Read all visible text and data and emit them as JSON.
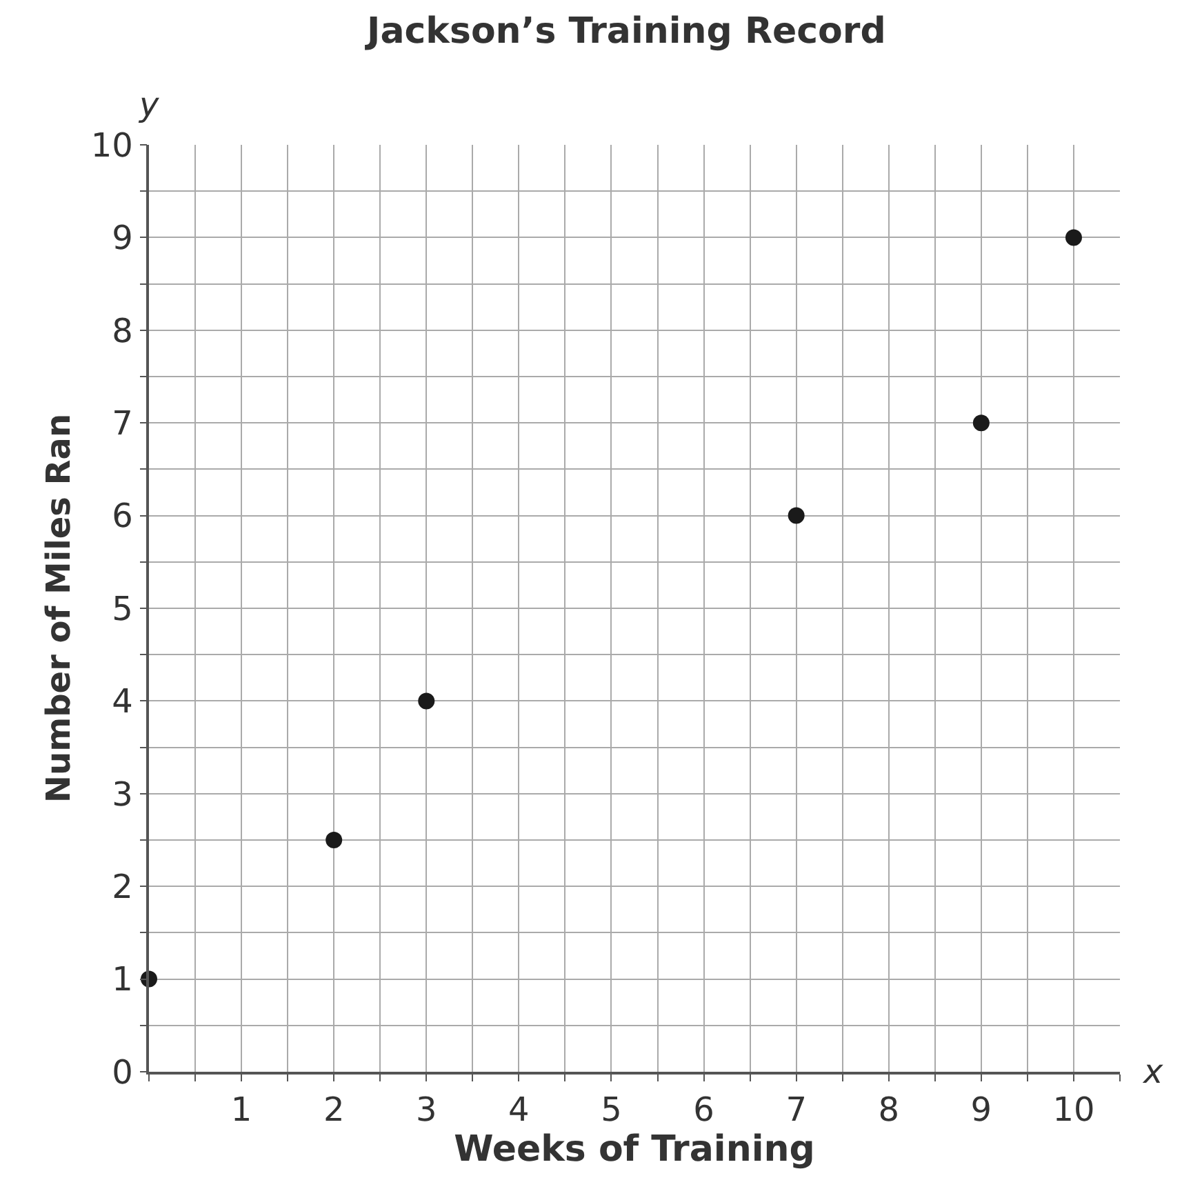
{
  "chart_data": {
    "type": "scatter",
    "title": "Jackson’s Training Record",
    "xlabel": "Weeks of Training",
    "ylabel": "Number of Miles Ran",
    "annotations": [
      "y",
      "x"
    ],
    "x": [
      0,
      2,
      3,
      7,
      9,
      10
    ],
    "series": [
      {
        "color": "#1a1a1a",
        "values": [
          1,
          2.5,
          4,
          6,
          7,
          9
        ]
      }
    ],
    "xlim": [
      0,
      10.5
    ],
    "ylim": [
      0,
      10
    ],
    "xticks": [
      {
        "value": 0,
        "label": null
      },
      {
        "value": 0.5,
        "label": null
      },
      1,
      {
        "value": 1.5,
        "label": null
      },
      2,
      {
        "value": 2.5,
        "label": null
      },
      3,
      {
        "value": 3.5,
        "label": null
      },
      4,
      {
        "value": 4.5,
        "label": null
      },
      5,
      {
        "value": 5.5,
        "label": null
      },
      6,
      {
        "value": 6.5,
        "label": null
      },
      7,
      {
        "value": 7.5,
        "label": null
      },
      8,
      {
        "value": 8.5,
        "label": null
      },
      9,
      {
        "value": 9.5,
        "label": null
      },
      10,
      {
        "value": 10.5,
        "label": null
      }
    ],
    "yticks": [
      0,
      {
        "value": 0.5,
        "label": null
      },
      1,
      {
        "value": 1.5,
        "label": null
      },
      2,
      {
        "value": 2.5,
        "label": null
      },
      3,
      {
        "value": 3.5,
        "label": null
      },
      4,
      {
        "value": 4.5,
        "label": null
      },
      5,
      {
        "value": 5.5,
        "label": null
      },
      6,
      {
        "value": 6.5,
        "label": null
      },
      7,
      {
        "value": 7.5,
        "label": null
      },
      8,
      {
        "value": 8.5,
        "label": null
      },
      9,
      {
        "value": 9.5,
        "label": null
      },
      10
    ],
    "grid": true,
    "marker": "circle"
  }
}
